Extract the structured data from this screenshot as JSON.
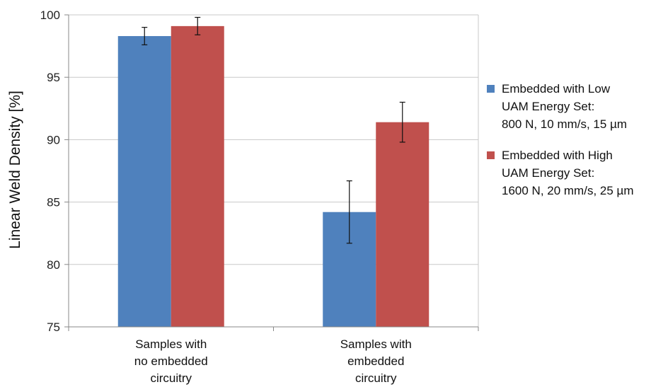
{
  "chart_data": {
    "type": "bar",
    "title": "",
    "xlabel": "",
    "ylabel": "Linear Weld Density [%]",
    "ylim": [
      75,
      100
    ],
    "yticks": [
      "75",
      "80",
      "85",
      "90",
      "95",
      "100"
    ],
    "grid": true,
    "legend_position": "right",
    "categories": [
      [
        "Samples with",
        "no embedded",
        "circuitry"
      ],
      [
        "Samples with",
        "embedded",
        "circuitry"
      ]
    ],
    "series": [
      {
        "name": [
          "Embedded with Low",
          "UAM Energy Set:",
          "800 N, 10 mm/s, 15 µm"
        ],
        "color": "#4f81bd",
        "values": [
          98.3,
          84.2
        ],
        "error": [
          0.7,
          2.5
        ]
      },
      {
        "name": [
          "Embedded with High",
          "UAM Energy Set:",
          "1600 N, 20 mm/s, 25 µm"
        ],
        "color": "#c0504d",
        "values": [
          99.1,
          91.4
        ],
        "error": [
          0.7,
          1.6
        ]
      }
    ]
  }
}
